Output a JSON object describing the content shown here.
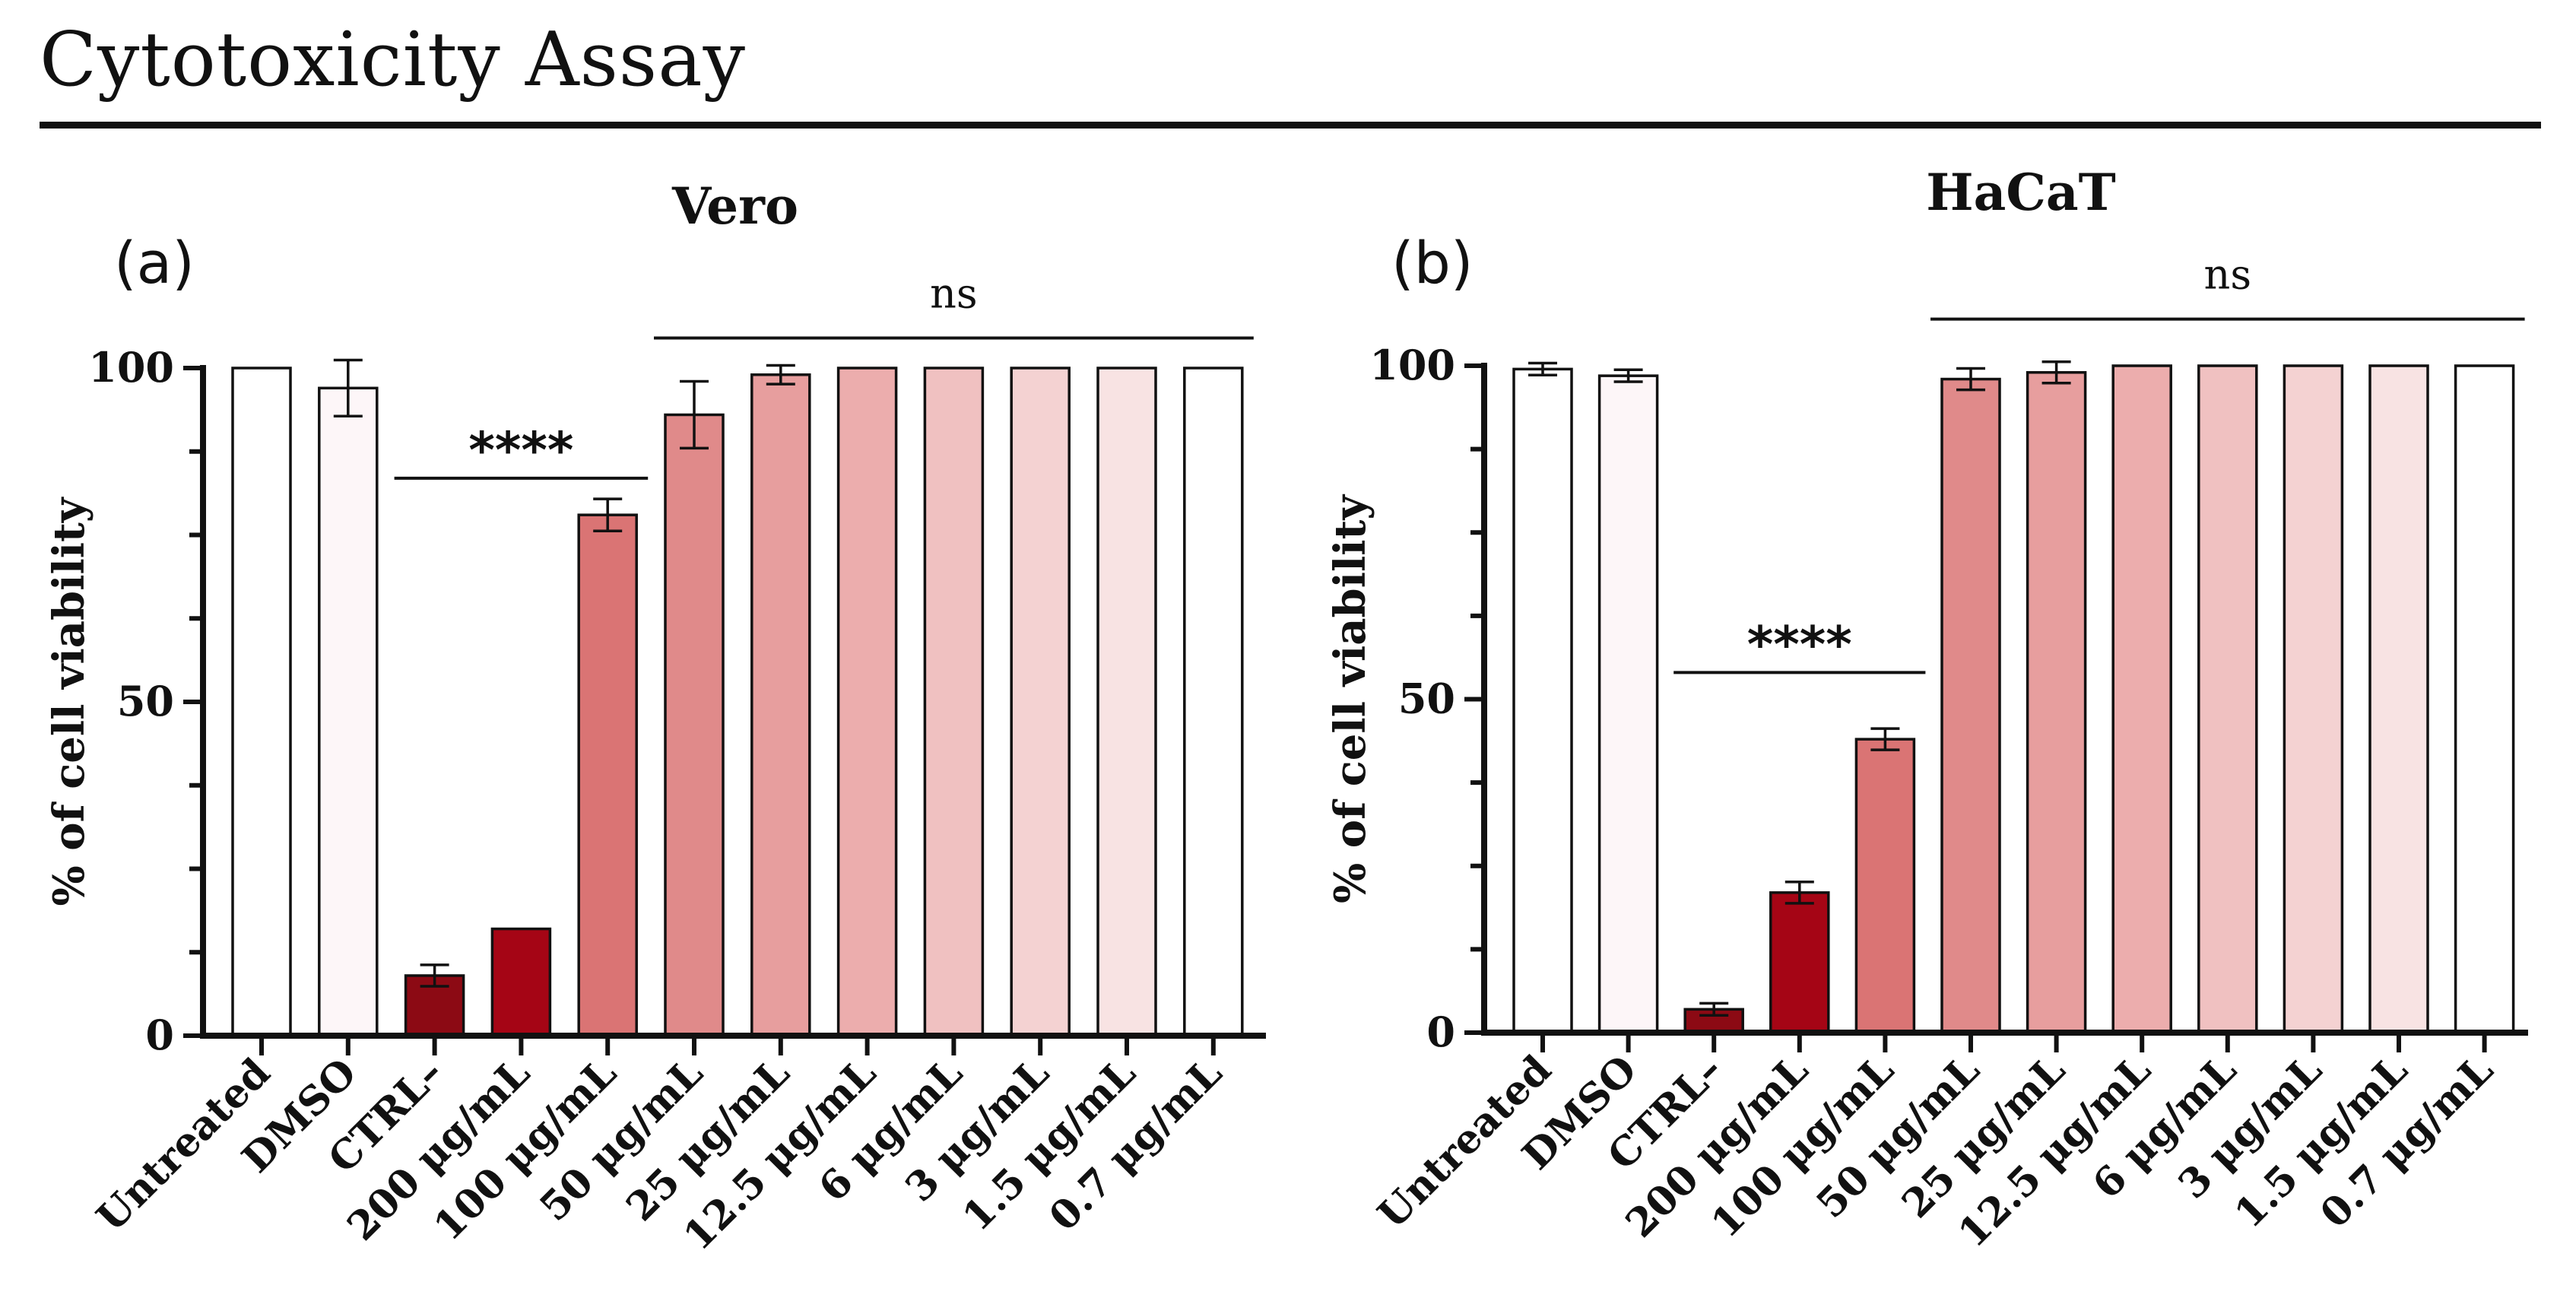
{
  "figure": {
    "title": "Cytotoxicity Assay"
  },
  "colors": {
    "Untreated": "#ffffff",
    "DMSO": "#fdf6f8",
    "CTRL–": "#8c0a14",
    "200 μg/mL": "#a50515",
    "100 μg/mL": "#da7474",
    "50 μg/mL": "#e08a8a",
    "25 μg/mL": "#e79e9e",
    "12.5 μg/mL": "#ecadad",
    "6 μg/mL": "#f0c1c1",
    "3 μg/mL": "#f4d2d2",
    "1.5 μg/mL": "#f8e3e3",
    "0.7 μg/mL": "#ffffff",
    "axis": "#111111"
  },
  "chart_data": [
    {
      "type": "bar",
      "panel_label": "(a)",
      "title": "Vero",
      "ylabel": "% of cell viability",
      "ylim": [
        0,
        100
      ],
      "yticks": [
        0,
        50,
        100
      ],
      "categories": [
        "Untreated",
        "DMSO",
        "CTRL–",
        "200 μg/mL",
        "100 μg/mL",
        "50 μg/mL",
        "25 μg/mL",
        "12.5 μg/mL",
        "6 μg/mL",
        "3 μg/mL",
        "1.5 μg/mL",
        "0.7 μg/mL"
      ],
      "values": [
        100,
        97,
        9,
        16,
        78,
        93,
        99,
        100,
        100,
        100,
        100,
        100
      ],
      "errors": [
        0,
        4.2,
        1.6,
        0,
        2.4,
        5.0,
        1.4,
        0,
        0,
        0,
        0,
        0
      ],
      "annotations": [
        {
          "text": "****",
          "from": "CTRL–",
          "to": "100 μg/mL",
          "y": 83.5
        },
        {
          "text": "ns",
          "from": "50 μg/mL",
          "to": "0.7 μg/mL",
          "y": 104.5
        }
      ]
    },
    {
      "type": "bar",
      "panel_label": "(b)",
      "title": "HaCaT",
      "ylabel": "% of cell viability",
      "ylim": [
        0,
        100
      ],
      "yticks": [
        0,
        50,
        100
      ],
      "categories": [
        "Untreated",
        "DMSO",
        "CTRL–",
        "200 μg/mL",
        "100 μg/mL",
        "50 μg/mL",
        "25 μg/mL",
        "12.5 μg/mL",
        "6 μg/mL",
        "3 μg/mL",
        "1.5 μg/mL",
        "0.7 μg/mL"
      ],
      "values": [
        99.5,
        98.5,
        3.5,
        21,
        44,
        98,
        99,
        100,
        100,
        100,
        100,
        100
      ],
      "errors": [
        0.9,
        0.9,
        0.9,
        1.6,
        1.6,
        1.6,
        1.6,
        0,
        0,
        0,
        0,
        0
      ],
      "annotations": [
        {
          "text": "****",
          "from": "CTRL–",
          "to": "100 μg/mL",
          "y": 54
        },
        {
          "text": "ns",
          "from": "50 μg/mL",
          "to": "0.7 μg/mL",
          "y": 107
        }
      ]
    }
  ]
}
